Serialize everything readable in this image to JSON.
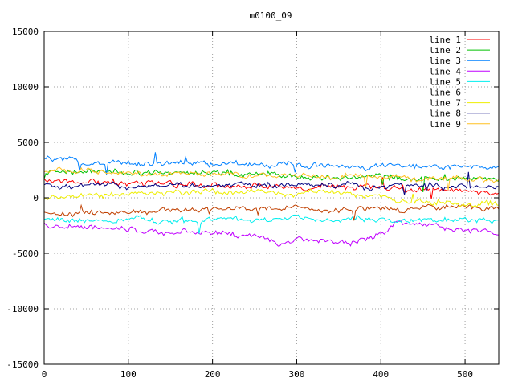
{
  "chart_data": {
    "type": "line",
    "title": "m0100_09",
    "xlabel": "",
    "ylabel": "",
    "xlim": [
      0,
      540
    ],
    "ylim": [
      -15000,
      15000
    ],
    "x_ticks": [
      0,
      100,
      200,
      300,
      400,
      500
    ],
    "y_ticks": [
      -15000,
      -10000,
      -5000,
      0,
      5000,
      10000,
      15000
    ],
    "grid": true,
    "legend_position": "top-right",
    "n_points": 540,
    "series": [
      {
        "name": "line 1",
        "color": "#ff0000",
        "base": [
          [
            0,
            1600
          ],
          [
            50,
            1500
          ],
          [
            100,
            1300
          ],
          [
            150,
            1200
          ],
          [
            200,
            1200
          ],
          [
            250,
            1100
          ],
          [
            300,
            1000
          ],
          [
            350,
            900
          ],
          [
            400,
            900
          ],
          [
            450,
            700
          ],
          [
            500,
            600
          ],
          [
            540,
            500
          ]
        ]
      },
      {
        "name": "line 2",
        "color": "#00c000",
        "base": [
          [
            0,
            2300
          ],
          [
            50,
            2300
          ],
          [
            100,
            2200
          ],
          [
            150,
            2200
          ],
          [
            200,
            2200
          ],
          [
            250,
            2000
          ],
          [
            300,
            1900
          ],
          [
            350,
            1800
          ],
          [
            400,
            1900
          ],
          [
            450,
            1700
          ],
          [
            500,
            1700
          ],
          [
            540,
            1600
          ]
        ]
      },
      {
        "name": "line 3",
        "color": "#0080ff",
        "base": [
          [
            0,
            3500
          ],
          [
            50,
            3200
          ],
          [
            100,
            3100
          ],
          [
            150,
            3100
          ],
          [
            200,
            3000
          ],
          [
            250,
            3000
          ],
          [
            300,
            2900
          ],
          [
            350,
            2800
          ],
          [
            400,
            2900
          ],
          [
            450,
            2800
          ],
          [
            500,
            2800
          ],
          [
            540,
            2700
          ]
        ]
      },
      {
        "name": "line 4",
        "color": "#c000ff",
        "base": [
          [
            0,
            -2500
          ],
          [
            50,
            -2700
          ],
          [
            100,
            -2900
          ],
          [
            150,
            -3000
          ],
          [
            200,
            -3100
          ],
          [
            250,
            -3300
          ],
          [
            280,
            -4200
          ],
          [
            300,
            -3600
          ],
          [
            350,
            -3800
          ],
          [
            370,
            -4100
          ],
          [
            400,
            -3200
          ],
          [
            420,
            -2200
          ],
          [
            450,
            -2400
          ],
          [
            500,
            -2900
          ],
          [
            540,
            -3100
          ]
        ]
      },
      {
        "name": "line 5",
        "color": "#00eeee",
        "base": [
          [
            0,
            -2000
          ],
          [
            50,
            -2100
          ],
          [
            100,
            -2000
          ],
          [
            150,
            -2000
          ],
          [
            200,
            -1900
          ],
          [
            250,
            -1800
          ],
          [
            300,
            -1800
          ],
          [
            350,
            -1900
          ],
          [
            400,
            -1900
          ],
          [
            450,
            -1800
          ],
          [
            500,
            -2000
          ],
          [
            540,
            -2000
          ]
        ]
      },
      {
        "name": "line 6",
        "color": "#c04000",
        "base": [
          [
            0,
            -1500
          ],
          [
            50,
            -1400
          ],
          [
            100,
            -1200
          ],
          [
            150,
            -1100
          ],
          [
            200,
            -1000
          ],
          [
            250,
            -1000
          ],
          [
            300,
            -1000
          ],
          [
            350,
            -1100
          ],
          [
            400,
            -1000
          ],
          [
            450,
            -900
          ],
          [
            500,
            -900
          ],
          [
            540,
            -900
          ]
        ]
      },
      {
        "name": "line 7",
        "color": "#eeee00",
        "base": [
          [
            0,
            -200
          ],
          [
            50,
            200
          ],
          [
            100,
            400
          ],
          [
            150,
            500
          ],
          [
            200,
            600
          ],
          [
            250,
            400
          ],
          [
            300,
            500
          ],
          [
            350,
            400
          ],
          [
            400,
            100
          ],
          [
            450,
            -300
          ],
          [
            500,
            -500
          ],
          [
            540,
            -600
          ]
        ]
      },
      {
        "name": "line 8",
        "color": "#000080",
        "base": [
          [
            0,
            1000
          ],
          [
            50,
            1200
          ],
          [
            100,
            1000
          ],
          [
            150,
            1200
          ],
          [
            200,
            1100
          ],
          [
            250,
            1100
          ],
          [
            300,
            1100
          ],
          [
            350,
            1200
          ],
          [
            400,
            1000
          ],
          [
            450,
            1100
          ],
          [
            500,
            1000
          ],
          [
            540,
            900
          ]
        ]
      },
      {
        "name": "line 9",
        "color": "#ffc020",
        "base": [
          [
            0,
            2600
          ],
          [
            50,
            2500
          ],
          [
            100,
            2300
          ],
          [
            150,
            2200
          ],
          [
            200,
            2100
          ],
          [
            250,
            2000
          ],
          [
            300,
            2000
          ],
          [
            350,
            1900
          ],
          [
            400,
            1800
          ],
          [
            450,
            1800
          ],
          [
            500,
            1600
          ],
          [
            540,
            1500
          ]
        ]
      }
    ]
  }
}
